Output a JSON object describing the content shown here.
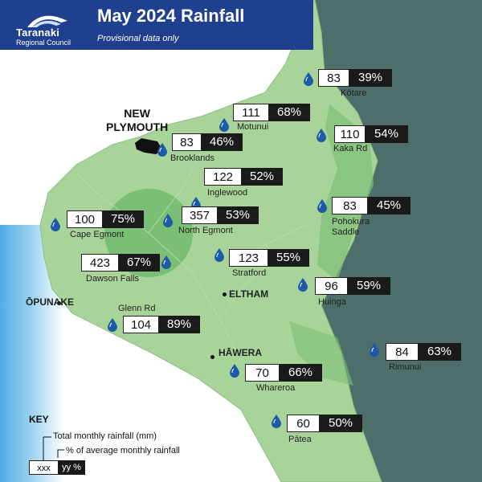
{
  "header": {
    "title": "May 2024 Rainfall",
    "subtitle": "Provisional data only",
    "logo_name": "Taranaki",
    "logo_org": "Regional Council",
    "background": "#1f3f8f"
  },
  "colors": {
    "land": "#a8d49a",
    "land_dark": "#7ebf78",
    "sea": "#4d6e6a",
    "ocean_left": "#3ba7de",
    "value_box": "#ffffff",
    "percent_box": "#1a1a1a",
    "drop": "#1e5aa8"
  },
  "cities": {
    "new_plymouth_line1": "NEW",
    "new_plymouth_line2": "PLYMOUTH",
    "opunake": "ŌPUNAKE",
    "eltham": "ELTHAM",
    "hawera": "HĀWERA"
  },
  "stations": [
    {
      "name": "Kōtare",
      "value": "83",
      "percent": "39%"
    },
    {
      "name": "Motunui",
      "value": "111",
      "percent": "68%"
    },
    {
      "name": "Kaka Rd",
      "value": "110",
      "percent": "54%"
    },
    {
      "name": "Brooklands",
      "value": "83",
      "percent": "46%"
    },
    {
      "name": "Inglewood",
      "value": "122",
      "percent": "52%"
    },
    {
      "name": "Pohokura Saddle",
      "value": "83",
      "percent": "45%"
    },
    {
      "name": "Cape Egmont",
      "value": "100",
      "percent": "75%"
    },
    {
      "name": "North Egmont",
      "value": "357",
      "percent": "53%"
    },
    {
      "name": "Stratford",
      "value": "123",
      "percent": "55%"
    },
    {
      "name": "Dawson Falls",
      "value": "423",
      "percent": "67%"
    },
    {
      "name": "Huinga",
      "value": "96",
      "percent": "59%"
    },
    {
      "name": "Glenn Rd",
      "value": "104",
      "percent": "89%"
    },
    {
      "name": "Rimunui",
      "value": "84",
      "percent": "63%"
    },
    {
      "name": "Whareroa",
      "value": "70",
      "percent": "66%"
    },
    {
      "name": "Pātea",
      "value": "60",
      "percent": "50%"
    }
  ],
  "key": {
    "title": "KEY",
    "total_label": "Total monthly rainfall (mm)",
    "percent_label": "% of average monthly rainfall",
    "sample_value": "xxx",
    "sample_percent": "yy %"
  }
}
